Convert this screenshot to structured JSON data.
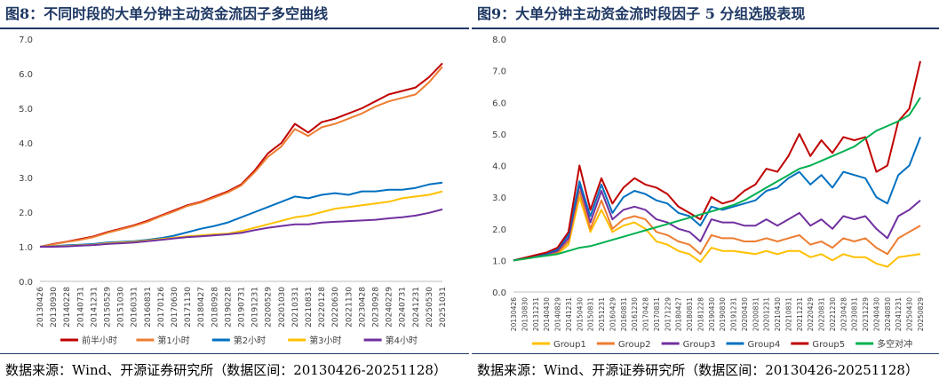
{
  "left": {
    "title": "图8：不同时段的大单分钟主动资金流因子多空曲线",
    "source": "数据来源：Wind、开源证券研究所（数据区间：20130426-20251128）",
    "chart_data": {
      "type": "line",
      "ylim": [
        0,
        7
      ],
      "yticks": [
        "0.0",
        "1.0",
        "2.0",
        "3.0",
        "4.0",
        "5.0",
        "6.0",
        "7.0"
      ],
      "x_labels": [
        "20130426",
        "20130930",
        "20140228",
        "20140731",
        "20141231",
        "20150529",
        "20151030",
        "20160331",
        "20160831",
        "20170126",
        "20170630",
        "20171130",
        "20180427",
        "20180928",
        "20190228",
        "20190731",
        "20191231",
        "20200529",
        "20201030",
        "20210331",
        "20210831",
        "20220128",
        "20220630",
        "20221130",
        "20230428",
        "20230928",
        "20240229",
        "20240731",
        "20241231",
        "20250530",
        "20251031"
      ],
      "legend_position": "bottom",
      "grid": false,
      "series": [
        {
          "name": "前半小时",
          "color": "#c00000",
          "values": [
            1.0,
            1.08,
            1.15,
            1.22,
            1.3,
            1.42,
            1.52,
            1.62,
            1.75,
            1.9,
            2.05,
            2.2,
            2.3,
            2.45,
            2.6,
            2.8,
            3.2,
            3.7,
            4.0,
            4.55,
            4.3,
            4.6,
            4.7,
            4.85,
            5.0,
            5.2,
            5.4,
            5.5,
            5.6,
            5.9,
            6.3
          ]
        },
        {
          "name": "第1小时",
          "color": "#ed7d31",
          "values": [
            1.0,
            1.07,
            1.14,
            1.2,
            1.28,
            1.4,
            1.5,
            1.6,
            1.72,
            1.88,
            2.02,
            2.18,
            2.28,
            2.42,
            2.57,
            2.77,
            3.15,
            3.6,
            3.9,
            4.4,
            4.2,
            4.45,
            4.55,
            4.7,
            4.85,
            5.05,
            5.2,
            5.3,
            5.4,
            5.75,
            6.2
          ]
        },
        {
          "name": "第2小时",
          "color": "#0070c0",
          "values": [
            1.0,
            1.02,
            1.04,
            1.06,
            1.08,
            1.12,
            1.14,
            1.16,
            1.2,
            1.25,
            1.32,
            1.42,
            1.52,
            1.6,
            1.7,
            1.85,
            2.0,
            2.15,
            2.3,
            2.45,
            2.4,
            2.5,
            2.55,
            2.5,
            2.6,
            2.6,
            2.65,
            2.65,
            2.7,
            2.8,
            2.85
          ]
        },
        {
          "name": "第3小时",
          "color": "#ffc000",
          "values": [
            1.0,
            1.01,
            1.02,
            1.04,
            1.06,
            1.1,
            1.12,
            1.14,
            1.18,
            1.22,
            1.26,
            1.3,
            1.33,
            1.36,
            1.38,
            1.45,
            1.55,
            1.65,
            1.75,
            1.85,
            1.9,
            2.0,
            2.1,
            2.15,
            2.2,
            2.25,
            2.3,
            2.4,
            2.45,
            2.5,
            2.6
          ]
        },
        {
          "name": "第4小时",
          "color": "#7030a0",
          "values": [
            1.0,
            1.0,
            1.01,
            1.03,
            1.05,
            1.08,
            1.1,
            1.12,
            1.16,
            1.2,
            1.24,
            1.28,
            1.3,
            1.33,
            1.36,
            1.4,
            1.48,
            1.55,
            1.6,
            1.65,
            1.65,
            1.7,
            1.72,
            1.74,
            1.76,
            1.78,
            1.82,
            1.85,
            1.9,
            1.98,
            2.08
          ]
        }
      ]
    }
  },
  "right": {
    "title": "图9：大单分钟主动资金流时段因子 5 分组选股表现",
    "source": "数据来源：Wind、开源证券研究所（数据区间：20130426-20251128）",
    "chart_data": {
      "type": "line",
      "ylim": [
        0,
        8
      ],
      "yticks": [
        "0.0",
        "1.0",
        "2.0",
        "3.0",
        "4.0",
        "5.0",
        "6.0",
        "7.0",
        "8.0"
      ],
      "x_labels": [
        "20130426",
        "20130830",
        "20131231",
        "20140430",
        "20140829",
        "20141231",
        "20150430",
        "20150831",
        "20151231",
        "20160429",
        "20160831",
        "20161230",
        "20170428",
        "20170831",
        "20171229",
        "20180427",
        "20180831",
        "20181228",
        "20190430",
        "20190830",
        "20191231",
        "20200430",
        "20200831",
        "20201231",
        "20210430",
        "20210831",
        "20211231",
        "20220429",
        "20220831",
        "20221230",
        "20230428",
        "20230831",
        "20231229",
        "20240430",
        "20240830",
        "20241231",
        "20250430",
        "20250829"
      ],
      "legend_position": "bottom",
      "grid": false,
      "series": [
        {
          "name": "Group1",
          "color": "#ffc000",
          "values": [
            1.0,
            1.05,
            1.12,
            1.15,
            1.2,
            1.5,
            3.0,
            1.9,
            2.6,
            1.9,
            2.1,
            2.2,
            2.0,
            1.6,
            1.5,
            1.3,
            1.2,
            0.95,
            1.4,
            1.3,
            1.3,
            1.25,
            1.2,
            1.3,
            1.2,
            1.3,
            1.3,
            1.1,
            1.2,
            1.0,
            1.2,
            1.1,
            1.1,
            0.9,
            0.8,
            1.1,
            1.15,
            1.2
          ]
        },
        {
          "name": "Group2",
          "color": "#ed7d31",
          "values": [
            1.0,
            1.06,
            1.14,
            1.18,
            1.25,
            1.6,
            3.2,
            2.0,
            2.9,
            2.0,
            2.3,
            2.4,
            2.3,
            1.9,
            1.8,
            1.6,
            1.5,
            1.2,
            1.8,
            1.7,
            1.7,
            1.6,
            1.6,
            1.7,
            1.6,
            1.7,
            1.8,
            1.5,
            1.6,
            1.4,
            1.7,
            1.6,
            1.7,
            1.4,
            1.2,
            1.7,
            1.9,
            2.1
          ]
        },
        {
          "name": "Group3",
          "color": "#7030a0",
          "values": [
            1.0,
            1.07,
            1.15,
            1.2,
            1.3,
            1.7,
            3.4,
            2.2,
            3.2,
            2.3,
            2.6,
            2.7,
            2.6,
            2.3,
            2.2,
            2.0,
            1.9,
            1.6,
            2.3,
            2.2,
            2.2,
            2.1,
            2.1,
            2.3,
            2.1,
            2.3,
            2.5,
            2.1,
            2.3,
            2.0,
            2.4,
            2.3,
            2.4,
            2.0,
            1.7,
            2.4,
            2.6,
            2.9
          ]
        },
        {
          "name": "Group4",
          "color": "#0070c0",
          "values": [
            1.0,
            1.08,
            1.16,
            1.22,
            1.35,
            1.8,
            3.5,
            2.4,
            3.4,
            2.5,
            3.0,
            3.2,
            3.1,
            2.9,
            2.8,
            2.5,
            2.4,
            2.1,
            2.7,
            2.6,
            2.7,
            2.8,
            2.9,
            3.2,
            3.3,
            3.6,
            3.8,
            3.4,
            3.7,
            3.3,
            3.8,
            3.7,
            3.6,
            3.0,
            2.8,
            3.7,
            4.0,
            4.9
          ]
        },
        {
          "name": "Group5",
          "color": "#c00000",
          "values": [
            1.0,
            1.08,
            1.17,
            1.25,
            1.4,
            1.9,
            4.0,
            2.6,
            3.6,
            2.8,
            3.3,
            3.6,
            3.4,
            3.3,
            3.1,
            2.7,
            2.5,
            2.3,
            3.0,
            2.8,
            2.9,
            3.2,
            3.4,
            3.9,
            3.8,
            4.3,
            5.0,
            4.3,
            4.8,
            4.4,
            4.9,
            4.8,
            4.9,
            3.8,
            4.0,
            5.4,
            5.8,
            7.3
          ]
        },
        {
          "name": "多空对冲",
          "color": "#00b050",
          "values": [
            1.0,
            1.05,
            1.1,
            1.15,
            1.2,
            1.3,
            1.4,
            1.45,
            1.55,
            1.65,
            1.75,
            1.85,
            1.95,
            2.05,
            2.15,
            2.25,
            2.35,
            2.45,
            2.55,
            2.65,
            2.75,
            2.9,
            3.1,
            3.3,
            3.5,
            3.7,
            3.9,
            4.0,
            4.15,
            4.3,
            4.45,
            4.6,
            4.85,
            5.1,
            5.25,
            5.4,
            5.6,
            6.15
          ]
        }
      ]
    }
  }
}
